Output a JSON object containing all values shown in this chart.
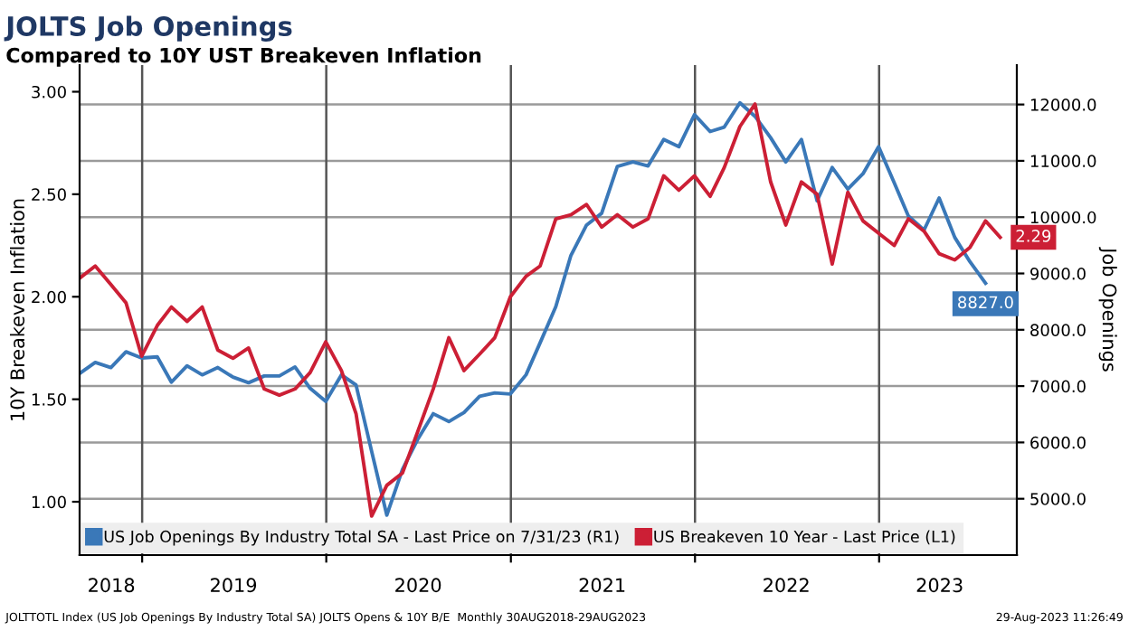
{
  "chart_data": {
    "type": "line",
    "title": "JOLTS Job Openings",
    "subtitle": "Compared to 10Y UST Breakeven Inflation",
    "ylabel": "10Y Breakeven Inflation",
    "y2label": "Job Openings",
    "xlim": [
      "2018-08-30",
      "2023-10-01"
    ],
    "xticks": [
      {
        "value": "2018-11-01",
        "label": "2018"
      },
      {
        "value": "2019-01-01",
        "label": null
      },
      {
        "value": "2019-07-01",
        "label": "2019"
      },
      {
        "value": "2020-01-01",
        "label": null
      },
      {
        "value": "2020-07-01",
        "label": "2020"
      },
      {
        "value": "2021-01-01",
        "label": null
      },
      {
        "value": "2021-07-01",
        "label": "2021"
      },
      {
        "value": "2022-01-01",
        "label": null
      },
      {
        "value": "2022-07-01",
        "label": "2022"
      },
      {
        "value": "2023-01-01",
        "label": null
      },
      {
        "value": "2023-05-01",
        "label": "2023"
      }
    ],
    "ylim": [
      0.74,
      3.13
    ],
    "yticks": [
      {
        "value": 1,
        "label": "1.00"
      },
      {
        "value": 1.5,
        "label": "1.50"
      },
      {
        "value": 2,
        "label": "2.00"
      },
      {
        "value": 2.5,
        "label": "2.50"
      },
      {
        "value": 3,
        "label": "3.00"
      }
    ],
    "y2lim": [
      4000,
      12700
    ],
    "y2ticks": [
      {
        "value": 5000,
        "label": "5000.0"
      },
      {
        "value": 6000,
        "label": "6000.0"
      },
      {
        "value": 7000,
        "label": "7000.0"
      },
      {
        "value": 8000,
        "label": "8000.0"
      },
      {
        "value": 9000,
        "label": "9000.0"
      },
      {
        "value": 10000,
        "label": "10000.0"
      },
      {
        "value": 11000,
        "label": "11000.0"
      },
      {
        "value": 12000,
        "label": "12000.0"
      }
    ],
    "grid": true,
    "legend": "bottom left",
    "marker": "none",
    "line_style": "solid",
    "series": [
      {
        "name": "US Job Openings By Industry Total SA - Last Price on 7/31/23 (R1)",
        "color": "#3a78b8",
        "axis": "y2",
        "x": [
          "2018-08-31",
          "2018-09-30",
          "2018-10-31",
          "2018-11-30",
          "2018-12-31",
          "2019-01-31",
          "2019-02-28",
          "2019-03-31",
          "2019-04-30",
          "2019-05-31",
          "2019-06-30",
          "2019-07-31",
          "2019-08-31",
          "2019-09-30",
          "2019-10-31",
          "2019-11-30",
          "2019-12-31",
          "2020-01-31",
          "2020-02-29",
          "2020-03-31",
          "2020-04-30",
          "2020-05-31",
          "2020-06-30",
          "2020-07-31",
          "2020-08-31",
          "2020-09-30",
          "2020-10-31",
          "2020-11-30",
          "2020-12-31",
          "2021-01-31",
          "2021-02-28",
          "2021-03-31",
          "2021-04-30",
          "2021-05-31",
          "2021-06-30",
          "2021-07-31",
          "2021-08-31",
          "2021-09-30",
          "2021-10-31",
          "2021-11-30",
          "2021-12-31",
          "2022-01-31",
          "2022-02-28",
          "2022-03-31",
          "2022-04-30",
          "2022-05-31",
          "2022-06-30",
          "2022-07-31",
          "2022-08-31",
          "2022-09-30",
          "2022-10-31",
          "2022-11-30",
          "2022-12-31",
          "2023-01-31",
          "2023-02-28",
          "2023-03-31",
          "2023-04-30",
          "2023-05-31",
          "2023-06-30",
          "2023-07-31"
        ],
        "values": [
          7230,
          7420,
          7330,
          7610,
          7500,
          7520,
          7070,
          7360,
          7200,
          7330,
          7160,
          7060,
          7180,
          7180,
          7340,
          6960,
          6730,
          7200,
          7020,
          5840,
          4710,
          5520,
          6050,
          6510,
          6370,
          6530,
          6820,
          6880,
          6860,
          7200,
          7770,
          8410,
          9320,
          9860,
          10070,
          10900,
          10980,
          10910,
          11380,
          11250,
          11820,
          11520,
          11600,
          12030,
          11790,
          11410,
          10980,
          11380,
          10290,
          10880,
          10500,
          10770,
          11250,
          10610,
          10020,
          9770,
          10340,
          9640,
          9210,
          8827
        ],
        "value_labels": [
          null,
          null,
          null,
          null,
          null,
          null,
          null,
          null,
          null,
          null,
          null,
          null,
          null,
          null,
          null,
          null,
          null,
          null,
          null,
          null,
          null,
          null,
          null,
          null,
          null,
          null,
          null,
          null,
          null,
          null,
          null,
          null,
          null,
          null,
          null,
          null,
          null,
          null,
          null,
          null,
          null,
          null,
          null,
          null,
          null,
          null,
          null,
          null,
          null,
          null,
          null,
          null,
          null,
          null,
          null,
          null,
          null,
          null,
          null,
          "8827.0"
        ]
      },
      {
        "name": "US Breakeven 10 Year - Last Price (L1)",
        "color": "#cc1f35",
        "axis": "y",
        "x": [
          "2018-08-30",
          "2018-09-30",
          "2018-10-31",
          "2018-11-30",
          "2018-12-31",
          "2019-01-31",
          "2019-02-28",
          "2019-03-31",
          "2019-04-30",
          "2019-05-31",
          "2019-06-30",
          "2019-07-31",
          "2019-08-31",
          "2019-09-30",
          "2019-10-31",
          "2019-11-30",
          "2019-12-31",
          "2020-01-31",
          "2020-02-29",
          "2020-03-31",
          "2020-04-30",
          "2020-05-31",
          "2020-06-30",
          "2020-07-31",
          "2020-08-31",
          "2020-09-30",
          "2020-10-31",
          "2020-11-30",
          "2020-12-31",
          "2021-01-31",
          "2021-02-28",
          "2021-03-31",
          "2021-04-30",
          "2021-05-31",
          "2021-06-30",
          "2021-07-31",
          "2021-08-31",
          "2021-09-30",
          "2021-10-31",
          "2021-11-30",
          "2021-12-31",
          "2022-01-31",
          "2022-02-28",
          "2022-03-31",
          "2022-04-30",
          "2022-05-31",
          "2022-06-30",
          "2022-07-31",
          "2022-08-31",
          "2022-09-30",
          "2022-10-31",
          "2022-11-30",
          "2022-12-31",
          "2023-01-31",
          "2023-02-28",
          "2023-03-31",
          "2023-04-30",
          "2023-05-31",
          "2023-06-30",
          "2023-07-31",
          "2023-08-29"
        ],
        "values": [
          2.09,
          2.15,
          2.06,
          1.97,
          1.71,
          1.86,
          1.95,
          1.88,
          1.95,
          1.74,
          1.7,
          1.75,
          1.55,
          1.52,
          1.55,
          1.63,
          1.78,
          1.64,
          1.43,
          0.93,
          1.08,
          1.14,
          1.34,
          1.55,
          1.8,
          1.64,
          1.72,
          1.8,
          2.0,
          2.1,
          2.15,
          2.38,
          2.4,
          2.45,
          2.34,
          2.4,
          2.34,
          2.38,
          2.59,
          2.52,
          2.59,
          2.49,
          2.63,
          2.83,
          2.94,
          2.56,
          2.35,
          2.56,
          2.5,
          2.16,
          2.51,
          2.37,
          2.31,
          2.25,
          2.38,
          2.32,
          2.21,
          2.18,
          2.24,
          2.37,
          2.29
        ],
        "value_labels": [
          null,
          null,
          null,
          null,
          null,
          null,
          null,
          null,
          null,
          null,
          null,
          null,
          null,
          null,
          null,
          null,
          null,
          null,
          null,
          null,
          null,
          null,
          null,
          null,
          null,
          null,
          null,
          null,
          null,
          null,
          null,
          null,
          null,
          null,
          null,
          null,
          null,
          null,
          null,
          null,
          null,
          null,
          null,
          null,
          null,
          null,
          null,
          null,
          null,
          null,
          null,
          null,
          null,
          null,
          null,
          null,
          null,
          null,
          null,
          null,
          "2.29"
        ]
      }
    ],
    "annotations": [
      "JOLTTOTL Index (US Job Openings By Industry Total SA) JOLTS Opens & 10Y B/E  Monthly 30AUG2018-29AUG2023",
      "29-Aug-2023 11:26:49"
    ]
  }
}
